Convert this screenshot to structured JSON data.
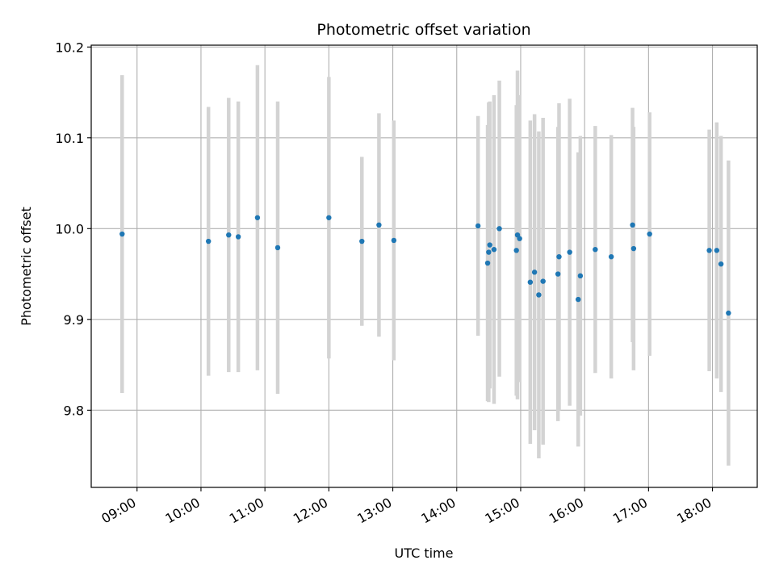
{
  "chart_data": {
    "type": "scatter",
    "title": "Photometric offset variation",
    "xlabel": "UTC time",
    "ylabel": "Photometric offset",
    "xlim": [
      "08:17",
      "18:42"
    ],
    "ylim": [
      9.715,
      10.202
    ],
    "x_ticks": [
      "09:00",
      "10:00",
      "11:00",
      "12:00",
      "13:00",
      "14:00",
      "15:00",
      "16:00",
      "17:00",
      "18:00"
    ],
    "y_ticks": [
      9.8,
      9.9,
      10.0,
      10.1,
      10.2
    ],
    "y_tick_labels": [
      "9.8",
      "9.9",
      "10.0",
      "10.1",
      "10.2"
    ],
    "grid": true,
    "marker_color": "#1f77b4",
    "errorbar_color": "#d3d3d3",
    "points": [
      {
        "x": "08:46",
        "y": 9.994,
        "err": 0.175
      },
      {
        "x": "10:07",
        "y": 9.986,
        "err": 0.148
      },
      {
        "x": "10:26",
        "y": 9.993,
        "err": 0.151
      },
      {
        "x": "10:35",
        "y": 9.991,
        "err": 0.149
      },
      {
        "x": "10:53",
        "y": 10.012,
        "err": 0.168
      },
      {
        "x": "11:12",
        "y": 9.979,
        "err": 0.161
      },
      {
        "x": "12:00",
        "y": 10.012,
        "err": 0.155
      },
      {
        "x": "12:31",
        "y": 9.986,
        "err": 0.093
      },
      {
        "x": "12:47",
        "y": 10.004,
        "err": 0.123
      },
      {
        "x": "13:01",
        "y": 9.987,
        "err": 0.132
      },
      {
        "x": "14:20",
        "y": 10.003,
        "err": 0.121
      },
      {
        "x": "14:29",
        "y": 9.962,
        "err": 0.152
      },
      {
        "x": "14:30",
        "y": 9.974,
        "err": 0.165
      },
      {
        "x": "14:31",
        "y": 9.982,
        "err": 0.158
      },
      {
        "x": "14:35",
        "y": 9.977,
        "err": 0.17
      },
      {
        "x": "14:40",
        "y": 10.0,
        "err": 0.163
      },
      {
        "x": "14:56",
        "y": 9.976,
        "err": 0.16
      },
      {
        "x": "14:57",
        "y": 9.993,
        "err": 0.181
      },
      {
        "x": "14:59",
        "y": 9.989,
        "err": 0.158
      },
      {
        "x": "15:09",
        "y": 9.941,
        "err": 0.178
      },
      {
        "x": "15:13",
        "y": 9.952,
        "err": 0.174
      },
      {
        "x": "15:17",
        "y": 9.927,
        "err": 0.18
      },
      {
        "x": "15:21",
        "y": 9.942,
        "err": 0.18
      },
      {
        "x": "15:35",
        "y": 9.95,
        "err": 0.162
      },
      {
        "x": "15:36",
        "y": 9.969,
        "err": 0.169
      },
      {
        "x": "15:46",
        "y": 9.974,
        "err": 0.169
      },
      {
        "x": "15:54",
        "y": 9.922,
        "err": 0.162
      },
      {
        "x": "15:56",
        "y": 9.948,
        "err": 0.154
      },
      {
        "x": "16:10",
        "y": 9.977,
        "err": 0.136
      },
      {
        "x": "16:25",
        "y": 9.969,
        "err": 0.134
      },
      {
        "x": "16:45",
        "y": 10.004,
        "err": 0.129
      },
      {
        "x": "16:46",
        "y": 9.978,
        "err": 0.134
      },
      {
        "x": "17:01",
        "y": 9.994,
        "err": 0.134
      },
      {
        "x": "17:57",
        "y": 9.976,
        "err": 0.133
      },
      {
        "x": "18:04",
        "y": 9.976,
        "err": 0.141
      },
      {
        "x": "18:08",
        "y": 9.961,
        "err": 0.141
      },
      {
        "x": "18:15",
        "y": 9.907,
        "err": 0.168
      }
    ]
  }
}
